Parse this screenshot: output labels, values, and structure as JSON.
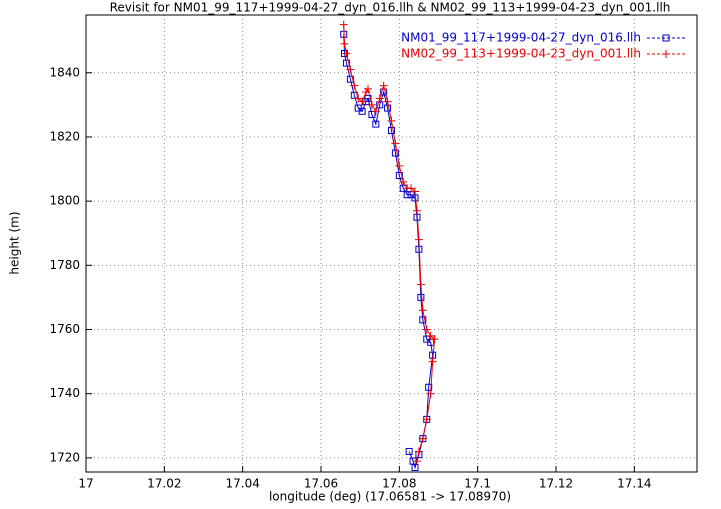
{
  "chart_data": {
    "type": "line",
    "title": "Revisit for NM01_99_117+1999-04-27_dyn_016.llh & NM02_99_113+1999-04-23_dyn_001.llh",
    "x_label": "longitude (deg) (17.06581 -> 17.08970)",
    "y_label": "height (m)",
    "xlim": [
      17,
      17.156
    ],
    "ylim": [
      1715.6,
      1858
    ],
    "xticks": [
      17,
      17.02,
      17.04,
      17.06,
      17.08,
      17.1,
      17.12,
      17.14
    ],
    "yticks": [
      1720,
      1740,
      1760,
      1780,
      1800,
      1820,
      1840
    ],
    "grid": true,
    "legend": "top-right",
    "series": [
      {
        "name": "NM01_99_117+1999-04-27_dyn_016.llh",
        "color": "#0000cc",
        "marker": "square",
        "x": [
          17.0658,
          17.066,
          17.0665,
          17.0675,
          17.0685,
          17.0695,
          17.0705,
          17.0715,
          17.072,
          17.073,
          17.074,
          17.075,
          17.076,
          17.077,
          17.078,
          17.079,
          17.08,
          17.081,
          17.082,
          17.083,
          17.084,
          17.0845,
          17.085,
          17.0855,
          17.086,
          17.087,
          17.088,
          17.0885,
          17.0875,
          17.087,
          17.086,
          17.085,
          17.084,
          17.0835,
          17.0825
        ],
        "values": [
          1852,
          1846,
          1843,
          1838,
          1833,
          1829,
          1828,
          1831,
          1832,
          1827,
          1824,
          1830,
          1834,
          1829,
          1822,
          1815,
          1808,
          1804,
          1802,
          1802,
          1801,
          1795,
          1785,
          1770,
          1763,
          1757,
          1756,
          1752,
          1742,
          1732,
          1726,
          1721,
          1717,
          1719,
          1722
        ]
      },
      {
        "name": "NM02_99_113+1999-04-23_dyn_001.llh",
        "color": "#ee0000",
        "marker": "plus",
        "x": [
          17.0658,
          17.066,
          17.0665,
          17.0675,
          17.0685,
          17.0695,
          17.0705,
          17.0715,
          17.072,
          17.073,
          17.074,
          17.075,
          17.076,
          17.077,
          17.078,
          17.079,
          17.08,
          17.081,
          17.082,
          17.083,
          17.084,
          17.0845,
          17.085,
          17.0855,
          17.086,
          17.087,
          17.088,
          17.089,
          17.0885,
          17.088,
          17.087,
          17.086,
          17.085,
          17.0845
        ],
        "values": [
          1855,
          1849,
          1846,
          1841,
          1836,
          1832,
          1831,
          1834,
          1835,
          1830,
          1828,
          1832,
          1836,
          1831,
          1825,
          1818,
          1811,
          1806,
          1804,
          1804,
          1803,
          1797,
          1788,
          1774,
          1766,
          1760,
          1758,
          1757,
          1750,
          1740,
          1732,
          1726,
          1722,
          1719
        ]
      }
    ]
  }
}
